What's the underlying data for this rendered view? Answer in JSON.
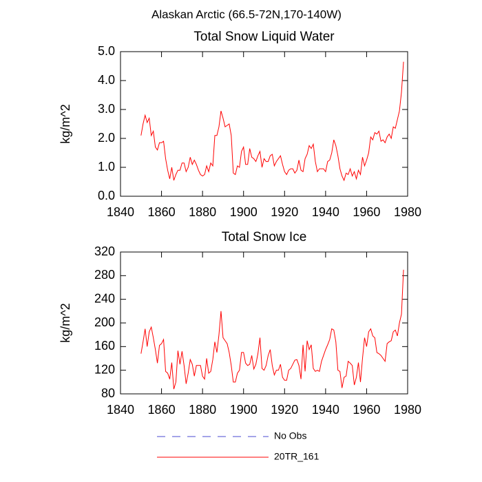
{
  "title": "Alaskan Arctic (66.5-72N,170-140W)",
  "legend": [
    {
      "name": "No Obs",
      "color": "#4a4ad0",
      "dash": true
    },
    {
      "name": "20TR_161",
      "color": "#ff0000",
      "dash": false
    }
  ],
  "chart_data": [
    {
      "type": "line",
      "title": "Total Snow Liquid Water",
      "y_label": "kg/m^2",
      "xlim": [
        1840,
        1980
      ],
      "xticks": [
        1840,
        1860,
        1880,
        1900,
        1920,
        1940,
        1960,
        1980
      ],
      "ylim": [
        0,
        5
      ],
      "yticks": [
        {
          "value": 0,
          "label": "0.0"
        },
        {
          "value": 1,
          "label": "1.0"
        },
        {
          "value": 2,
          "label": "2.0"
        },
        {
          "value": 3,
          "label": "3.0"
        },
        {
          "value": 4,
          "label": "4.0"
        },
        {
          "value": 5,
          "label": "5.0"
        }
      ],
      "x": [
        1850,
        1851,
        1852,
        1853,
        1854,
        1855,
        1856,
        1857,
        1858,
        1859,
        1860,
        1861,
        1862,
        1863,
        1864,
        1865,
        1866,
        1867,
        1868,
        1869,
        1870,
        1871,
        1872,
        1873,
        1874,
        1875,
        1876,
        1877,
        1878,
        1879,
        1880,
        1881,
        1882,
        1883,
        1884,
        1885,
        1886,
        1887,
        1888,
        1889,
        1890,
        1891,
        1892,
        1893,
        1894,
        1895,
        1896,
        1897,
        1898,
        1899,
        1900,
        1901,
        1902,
        1903,
        1904,
        1905,
        1906,
        1907,
        1908,
        1909,
        1910,
        1911,
        1912,
        1913,
        1914,
        1915,
        1916,
        1917,
        1918,
        1919,
        1920,
        1921,
        1922,
        1923,
        1924,
        1925,
        1926,
        1927,
        1928,
        1929,
        1930,
        1931,
        1932,
        1933,
        1934,
        1935,
        1936,
        1937,
        1938,
        1939,
        1940,
        1941,
        1942,
        1943,
        1944,
        1945,
        1946,
        1947,
        1948,
        1949,
        1950,
        1951,
        1952,
        1953,
        1954,
        1955,
        1956,
        1957,
        1958,
        1959,
        1960,
        1961,
        1962,
        1963,
        1964,
        1965,
        1966,
        1967,
        1968,
        1969,
        1970,
        1971,
        1972,
        1973,
        1974,
        1975,
        1976,
        1977,
        1978
      ],
      "series": [
        {
          "color": "#ff0000",
          "values": [
            2.1,
            2.5,
            2.8,
            2.55,
            2.7,
            2.1,
            2.25,
            1.7,
            1.6,
            1.85,
            1.85,
            1.9,
            1.3,
            0.9,
            0.6,
            1.0,
            0.55,
            0.75,
            0.9,
            0.9,
            1.15,
            1.15,
            0.85,
            1.0,
            1.35,
            1.1,
            1.25,
            1.1,
            0.9,
            0.75,
            0.7,
            0.75,
            1.05,
            0.85,
            1.15,
            1.05,
            2.1,
            2.1,
            2.4,
            2.95,
            2.7,
            2.4,
            2.45,
            2.5,
            2.1,
            0.8,
            0.75,
            1.05,
            1.0,
            1.55,
            1.7,
            1.1,
            1.1,
            1.65,
            1.35,
            1.3,
            1.2,
            1.4,
            1.55,
            1.0,
            1.3,
            1.2,
            1.2,
            1.4,
            1.45,
            1.05,
            1.2,
            1.3,
            1.4,
            1.1,
            0.85,
            0.75,
            0.9,
            0.95,
            0.95,
            0.8,
            0.9,
            1.25,
            0.9,
            0.85,
            1.3,
            1.45,
            1.75,
            1.65,
            1.8,
            1.2,
            0.85,
            0.95,
            0.95,
            0.95,
            0.85,
            1.2,
            1.25,
            1.5,
            1.95,
            1.75,
            1.4,
            0.95,
            0.7,
            0.55,
            0.8,
            0.75,
            0.95,
            0.7,
            0.85,
            0.6,
            0.9,
            0.75,
            1.35,
            1.05,
            1.25,
            1.5,
            2.05,
            1.95,
            2.2,
            2.15,
            2.25,
            1.9,
            1.95,
            1.85,
            2.05,
            2.15,
            2.0,
            2.4,
            2.35,
            2.65,
            2.95,
            3.6,
            4.65
          ]
        }
      ]
    },
    {
      "type": "line",
      "title": "Total Snow Ice",
      "y_label": "kg/m^2",
      "xlim": [
        1840,
        1980
      ],
      "xticks": [
        1840,
        1860,
        1880,
        1900,
        1920,
        1940,
        1960,
        1980
      ],
      "ylim": [
        80,
        320
      ],
      "yticks": [
        80,
        120,
        160,
        200,
        240,
        280,
        320
      ],
      "x": [
        1850,
        1851,
        1852,
        1853,
        1854,
        1855,
        1856,
        1857,
        1858,
        1859,
        1860,
        1861,
        1862,
        1863,
        1864,
        1865,
        1866,
        1867,
        1868,
        1869,
        1870,
        1871,
        1872,
        1873,
        1874,
        1875,
        1876,
        1877,
        1878,
        1879,
        1880,
        1881,
        1882,
        1883,
        1884,
        1885,
        1886,
        1887,
        1888,
        1889,
        1890,
        1891,
        1892,
        1893,
        1894,
        1895,
        1896,
        1897,
        1898,
        1899,
        1900,
        1901,
        1902,
        1903,
        1904,
        1905,
        1906,
        1907,
        1908,
        1909,
        1910,
        1911,
        1912,
        1913,
        1914,
        1915,
        1916,
        1917,
        1918,
        1919,
        1920,
        1921,
        1922,
        1923,
        1924,
        1925,
        1926,
        1927,
        1928,
        1929,
        1930,
        1931,
        1932,
        1933,
        1934,
        1935,
        1936,
        1937,
        1938,
        1939,
        1940,
        1941,
        1942,
        1943,
        1944,
        1945,
        1946,
        1947,
        1948,
        1949,
        1950,
        1951,
        1952,
        1953,
        1954,
        1955,
        1956,
        1957,
        1958,
        1959,
        1960,
        1961,
        1962,
        1963,
        1964,
        1965,
        1966,
        1967,
        1968,
        1969,
        1970,
        1971,
        1972,
        1973,
        1974,
        1975,
        1976,
        1977,
        1978
      ],
      "series": [
        {
          "color": "#ff0000",
          "values": [
            148,
            168,
            190,
            160,
            185,
            193,
            175,
            155,
            132,
            162,
            165,
            172,
            118,
            115,
            105,
            133,
            88,
            100,
            153,
            130,
            152,
            128,
            97,
            115,
            138,
            130,
            110,
            128,
            128,
            128,
            110,
            105,
            140,
            115,
            118,
            138,
            168,
            150,
            180,
            220,
            175,
            170,
            165,
            150,
            128,
            100,
            100,
            115,
            120,
            150,
            150,
            132,
            128,
            130,
            145,
            122,
            130,
            148,
            175,
            123,
            120,
            128,
            145,
            155,
            128,
            112,
            120,
            120,
            130,
            108,
            103,
            103,
            120,
            123,
            130,
            137,
            138,
            128,
            105,
            163,
            118,
            170,
            155,
            163,
            123,
            118,
            120,
            118,
            135,
            145,
            155,
            163,
            172,
            190,
            188,
            168,
            120,
            118,
            90,
            108,
            110,
            135,
            132,
            128,
            95,
            108,
            133,
            100,
            140,
            175,
            160,
            185,
            190,
            178,
            175,
            150,
            148,
            145,
            140,
            135,
            165,
            168,
            170,
            185,
            188,
            178,
            200,
            215,
            290
          ]
        }
      ]
    }
  ]
}
